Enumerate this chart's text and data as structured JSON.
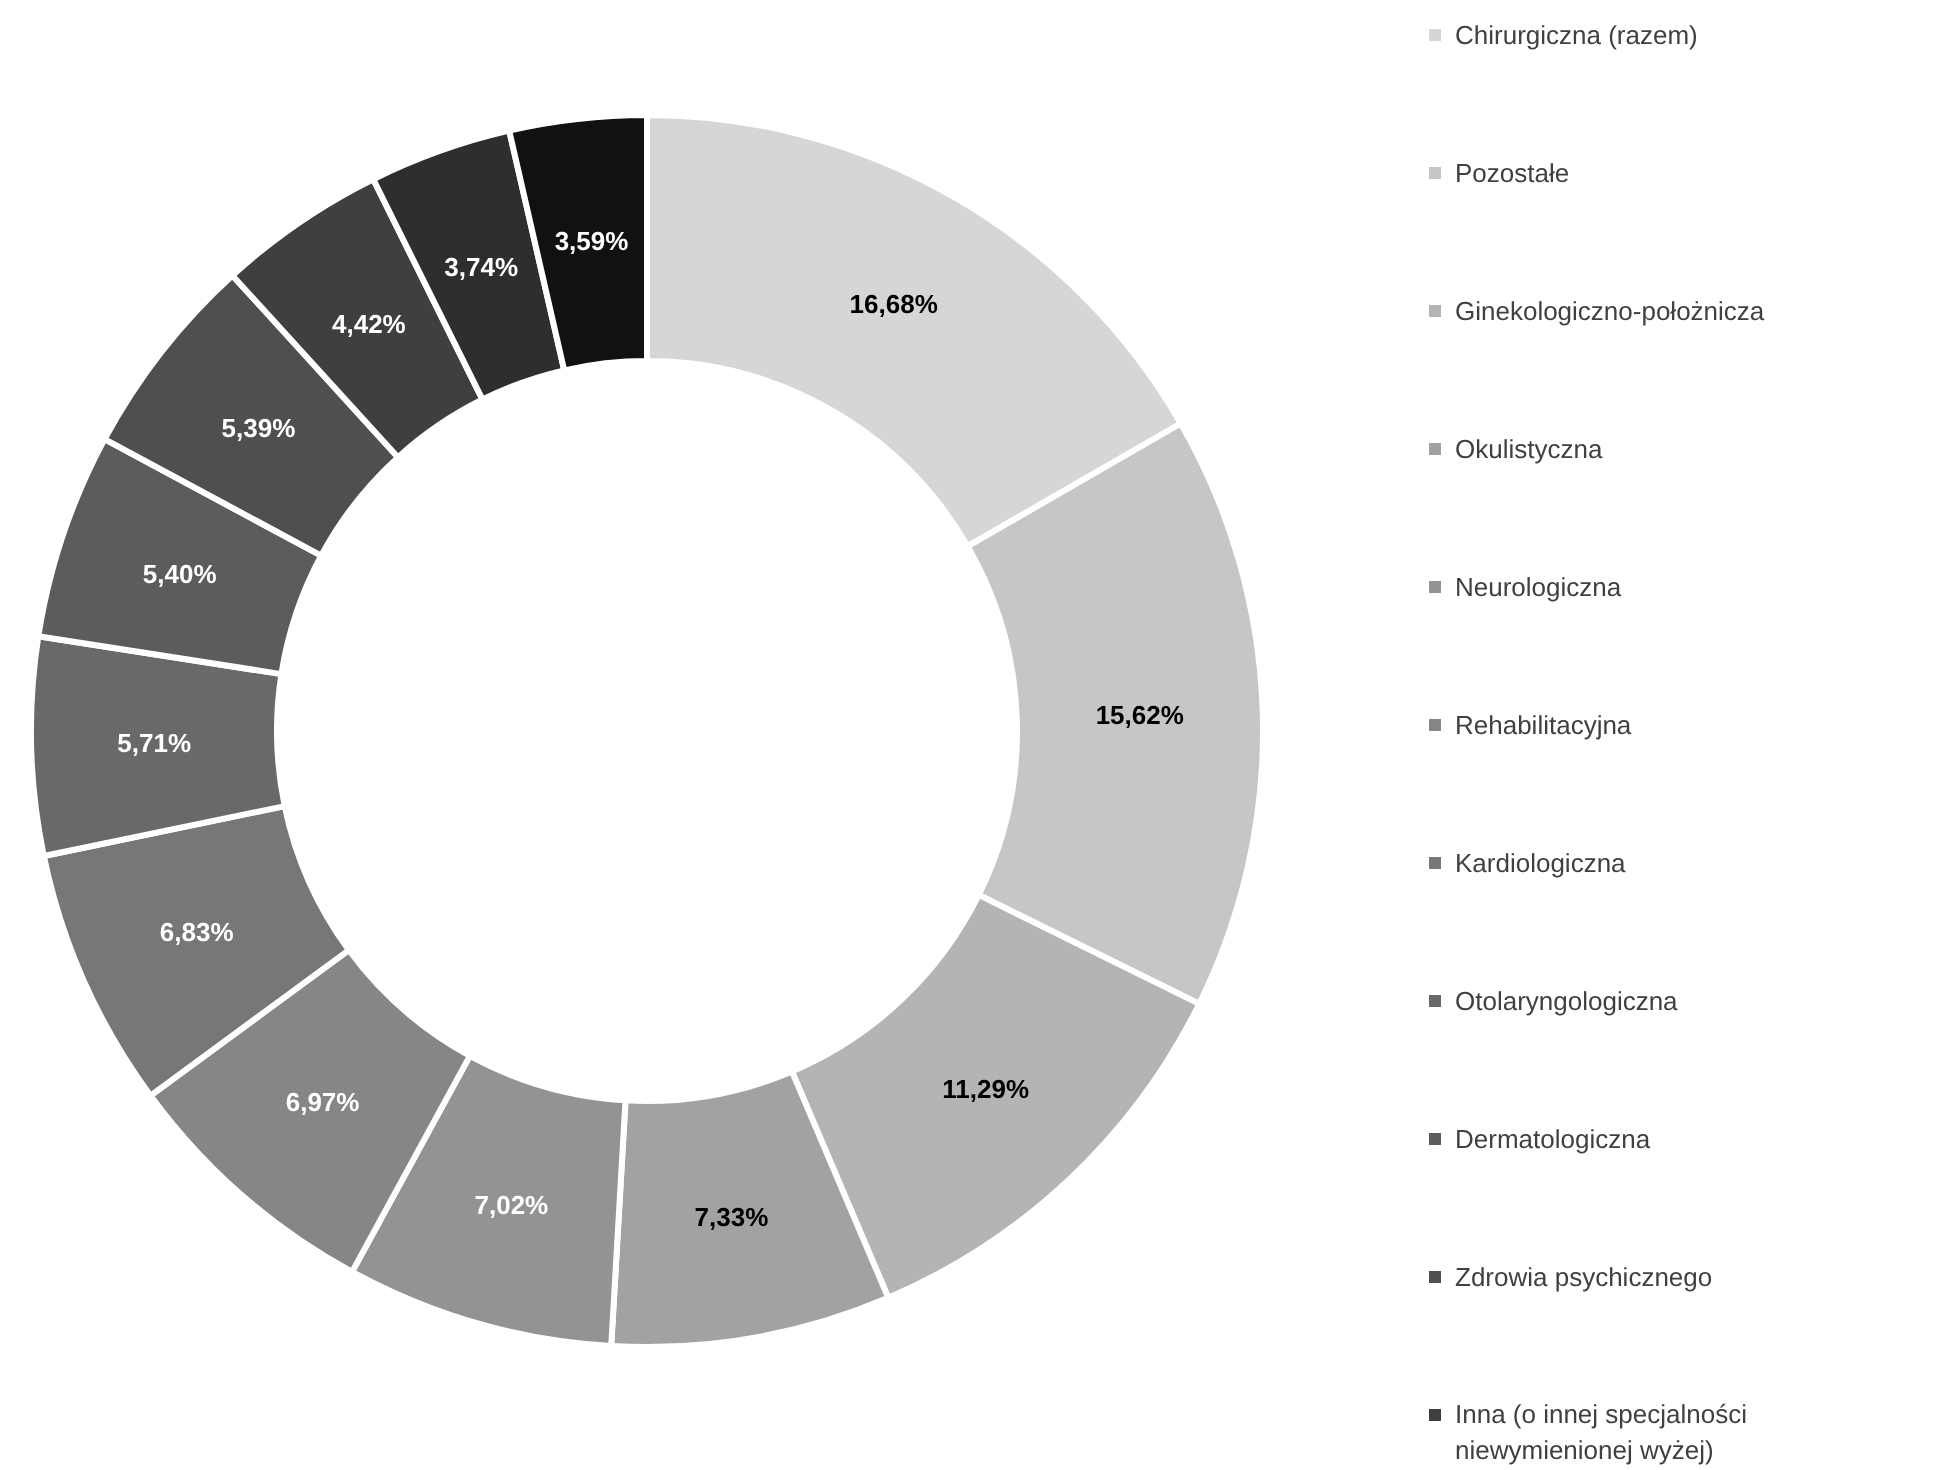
{
  "chart_data": {
    "type": "donut",
    "categories": [
      "Chirurgiczna (razem)",
      "Pozostałe",
      "Ginekologiczno-położnicza",
      "Okulistyczna",
      "Neurologiczna",
      "Rehabilitacyjna",
      "Kardiologiczna",
      "Otolaryngologiczna",
      "Dermatologiczna",
      "Zdrowia psychicznego",
      "Inna (o innej specjalności niewymienionej wyżej)",
      null,
      null
    ],
    "values": [
      16.68,
      15.62,
      11.29,
      7.33,
      7.02,
      6.97,
      6.83,
      5.71,
      5.4,
      5.39,
      4.42,
      3.74,
      3.59
    ],
    "value_labels": [
      "16,68%",
      "15,62%",
      "11,29%",
      "7,33%",
      "7,02%",
      "6,97%",
      "6,83%",
      "5,71%",
      "5,40%",
      "5,39%",
      "4,42%",
      "3,74%",
      "3,59%"
    ],
    "colors": [
      "#d6d6d6",
      "#c6c6c6",
      "#b4b4b4",
      "#a2a2a2",
      "#939393",
      "#868686",
      "#777777",
      "#696969",
      "#5c5c5c",
      "#4f4f4f",
      "#3f3f3f",
      "#2e2e2e",
      "#111111"
    ],
    "legend": "right"
  }
}
